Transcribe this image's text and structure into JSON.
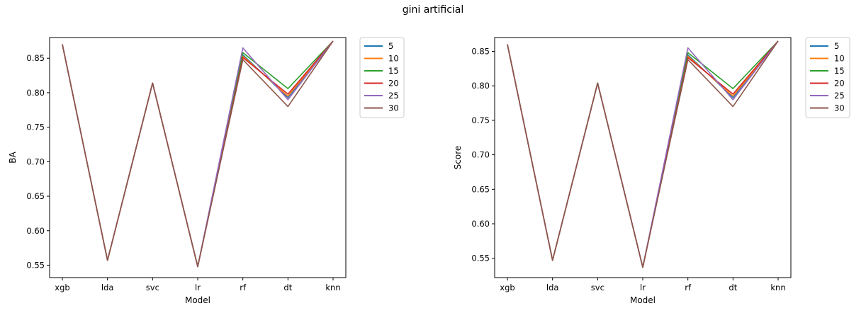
{
  "figure": {
    "title": "gini artificial"
  },
  "chart_data": [
    {
      "type": "line",
      "title": "",
      "xlabel": "Model",
      "ylabel": "BA",
      "categories": [
        "xgb",
        "lda",
        "svc",
        "lr",
        "rf",
        "dt",
        "knn"
      ],
      "ylim": [
        0.532,
        0.88
      ],
      "yticks": [
        "0.55",
        "0.60",
        "0.65",
        "0.70",
        "0.75",
        "0.80",
        "0.85"
      ],
      "grid": false,
      "legend": "outside-right",
      "series": [
        {
          "name": "5",
          "color": "#1f77b4",
          "values": [
            0.87,
            0.557,
            0.814,
            0.548,
            0.855,
            0.793,
            0.875
          ]
        },
        {
          "name": "10",
          "color": "#ff7f0e",
          "values": [
            0.87,
            0.557,
            0.814,
            0.548,
            0.853,
            0.795,
            0.875
          ]
        },
        {
          "name": "15",
          "color": "#2ca02c",
          "values": [
            0.87,
            0.557,
            0.814,
            0.548,
            0.858,
            0.806,
            0.875
          ]
        },
        {
          "name": "20",
          "color": "#d62728",
          "values": [
            0.87,
            0.557,
            0.814,
            0.548,
            0.851,
            0.798,
            0.875
          ]
        },
        {
          "name": "25",
          "color": "#9467bd",
          "values": [
            0.87,
            0.557,
            0.814,
            0.548,
            0.865,
            0.79,
            0.875
          ]
        },
        {
          "name": "30",
          "color": "#8c564b",
          "values": [
            0.87,
            0.557,
            0.814,
            0.548,
            0.848,
            0.78,
            0.875
          ]
        }
      ]
    },
    {
      "type": "line",
      "title": "",
      "xlabel": "Model",
      "ylabel": "Score",
      "categories": [
        "xgb",
        "lda",
        "svc",
        "lr",
        "rf",
        "dt",
        "knn"
      ],
      "ylim": [
        0.522,
        0.87
      ],
      "yticks": [
        "0.55",
        "0.60",
        "0.65",
        "0.70",
        "0.75",
        "0.80",
        "0.85"
      ],
      "grid": false,
      "legend": "outside-right",
      "series": [
        {
          "name": "5",
          "color": "#1f77b4",
          "values": [
            0.86,
            0.547,
            0.804,
            0.537,
            0.845,
            0.783,
            0.865
          ]
        },
        {
          "name": "10",
          "color": "#ff7f0e",
          "values": [
            0.86,
            0.547,
            0.804,
            0.537,
            0.843,
            0.785,
            0.865
          ]
        },
        {
          "name": "15",
          "color": "#2ca02c",
          "values": [
            0.86,
            0.547,
            0.804,
            0.537,
            0.848,
            0.796,
            0.865
          ]
        },
        {
          "name": "20",
          "color": "#d62728",
          "values": [
            0.86,
            0.547,
            0.804,
            0.537,
            0.841,
            0.788,
            0.865
          ]
        },
        {
          "name": "25",
          "color": "#9467bd",
          "values": [
            0.86,
            0.547,
            0.804,
            0.537,
            0.855,
            0.78,
            0.865
          ]
        },
        {
          "name": "30",
          "color": "#8c564b",
          "values": [
            0.86,
            0.547,
            0.804,
            0.537,
            0.838,
            0.77,
            0.865
          ]
        }
      ]
    }
  ]
}
